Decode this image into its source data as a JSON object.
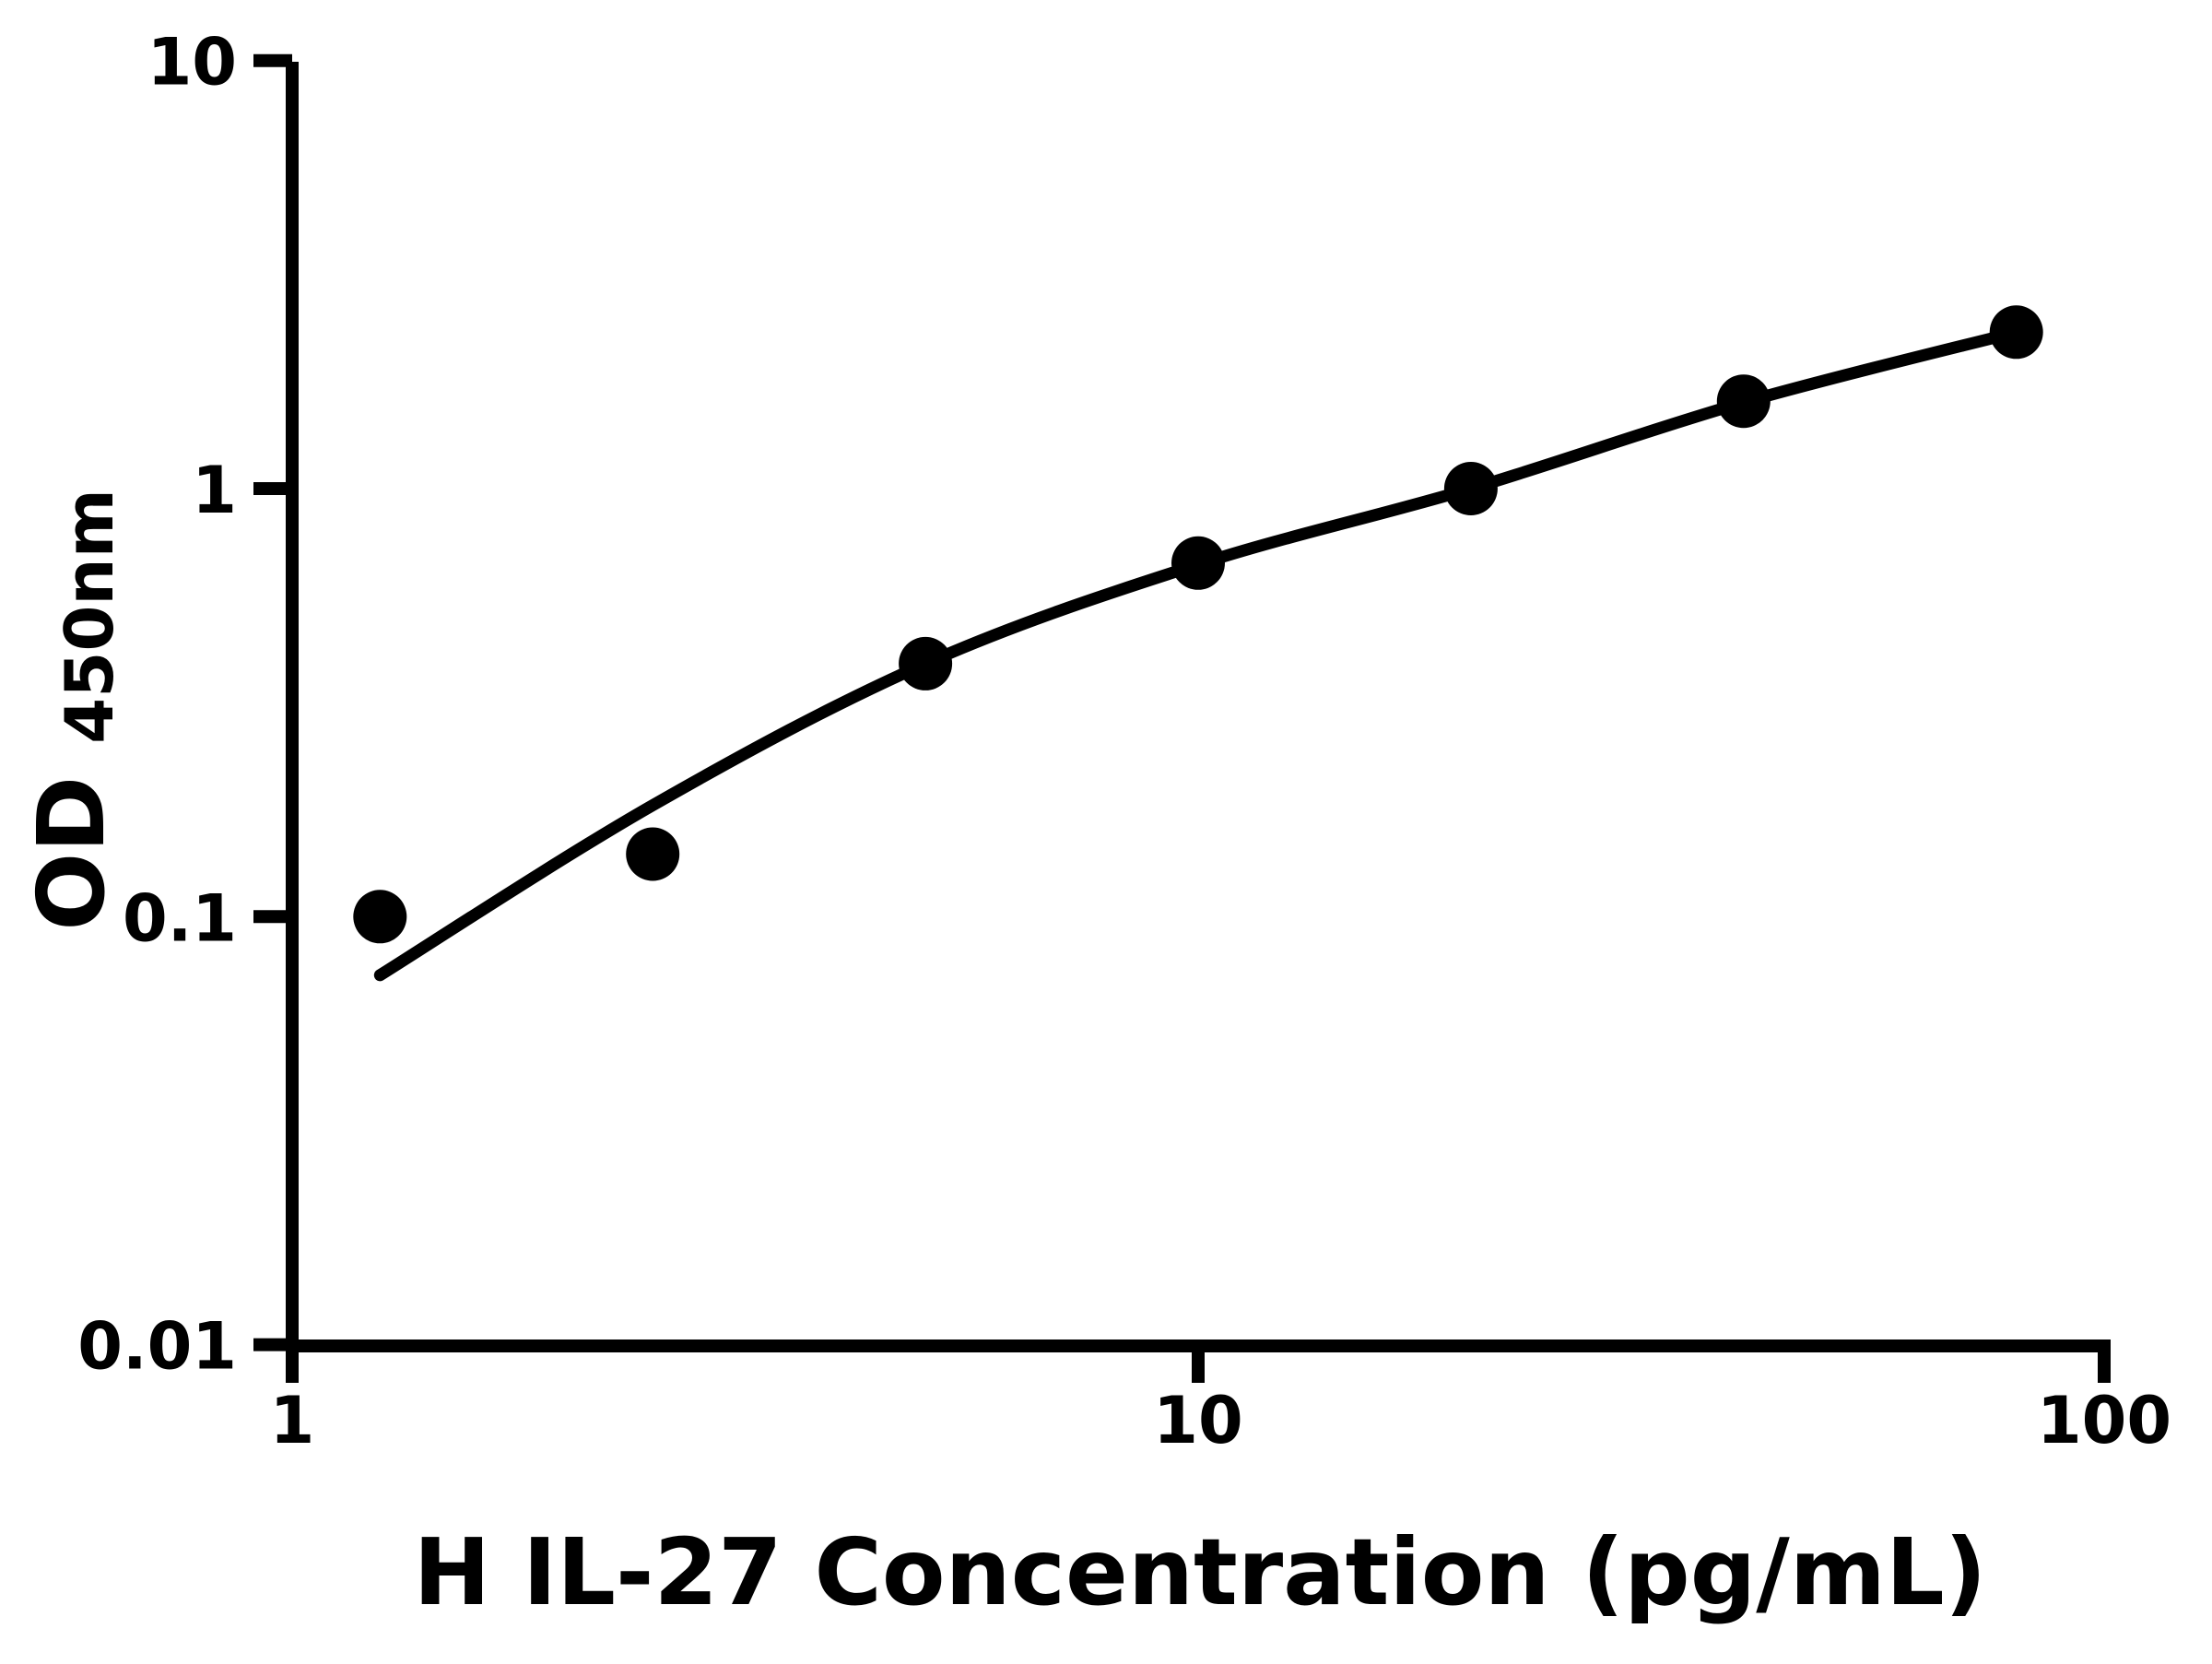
{
  "colors": {
    "foreground": "#000000",
    "background": "#ffffff"
  },
  "chart_data": {
    "type": "scatter",
    "title": "",
    "xlabel": "H IL-27 Concentration (pg/mL)",
    "ylabel": "OD",
    "ylabel_subscript": "450nm",
    "xscale": "log",
    "yscale": "log",
    "xlim": [
      1,
      100
    ],
    "ylim": [
      0.01,
      10
    ],
    "x_ticks": [
      1,
      10,
      100
    ],
    "x_tick_labels": [
      "1",
      "10",
      "100"
    ],
    "y_ticks": [
      10,
      1,
      0.1,
      0.01
    ],
    "y_tick_labels": [
      "10",
      "1",
      "0.1",
      "0.01"
    ],
    "grid": false,
    "legend": false,
    "series": [
      {
        "name": "standard-points",
        "marker": "filled-circle",
        "color": "#000000",
        "x": [
          1.25,
          2.5,
          5,
          10,
          20,
          40,
          80
        ],
        "y": [
          0.1,
          0.14,
          0.39,
          0.67,
          1.0,
          1.6,
          2.32
        ]
      }
    ],
    "fit_curve": {
      "name": "standard-curve-fit",
      "color": "#000000",
      "x": [
        1.25,
        2.5,
        5,
        10,
        20,
        40,
        80
      ],
      "y": [
        0.073,
        0.182,
        0.39,
        0.665,
        1.0,
        1.59,
        2.32
      ]
    }
  }
}
